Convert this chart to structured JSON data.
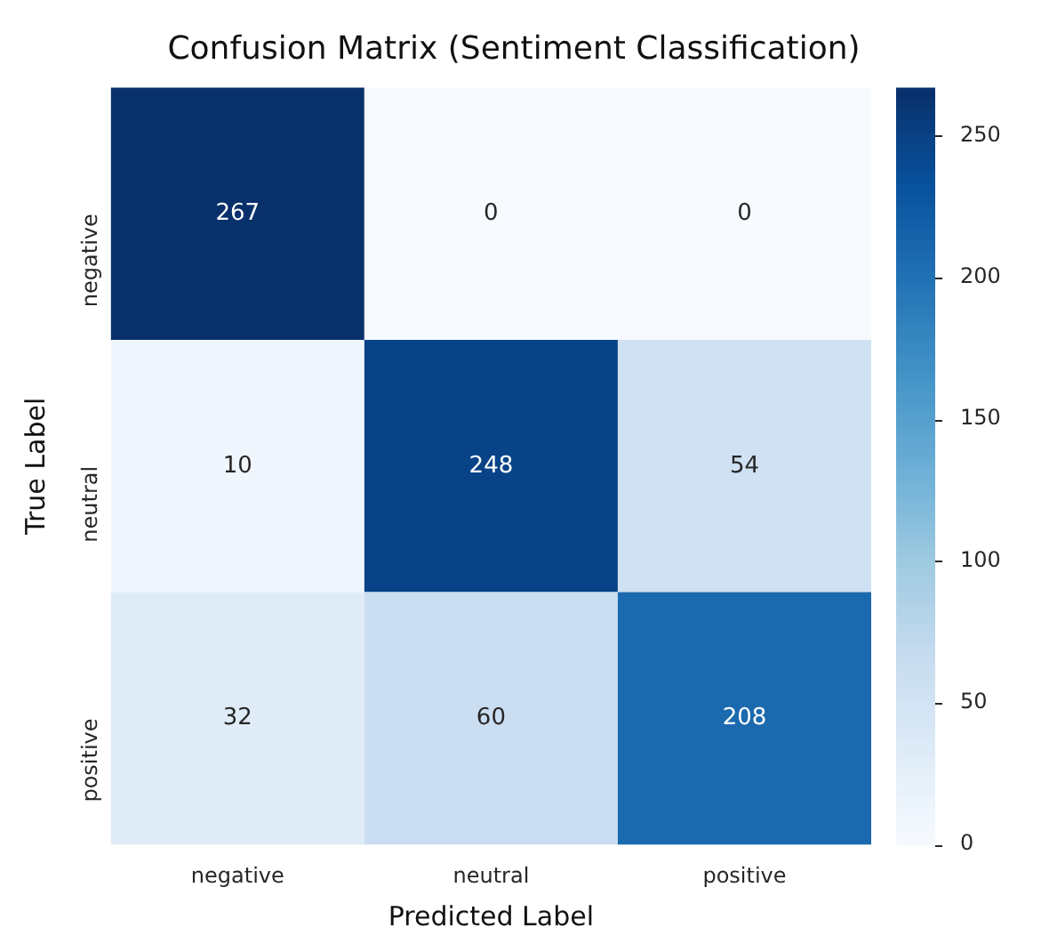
{
  "chart_data": {
    "type": "heatmap",
    "title": "Confusion Matrix (Sentiment Classification)",
    "xlabel": "Predicted Label",
    "ylabel": "True Label",
    "categories": [
      "negative",
      "neutral",
      "positive"
    ],
    "y_categories": [
      "negative",
      "neutral",
      "positive"
    ],
    "cells": [
      [
        267,
        0,
        0
      ],
      [
        10,
        248,
        54
      ],
      [
        32,
        60,
        208
      ]
    ],
    "clim": [
      0,
      267
    ],
    "cticks": [
      0,
      50,
      100,
      150,
      200,
      250
    ],
    "data_labels": true
  }
}
